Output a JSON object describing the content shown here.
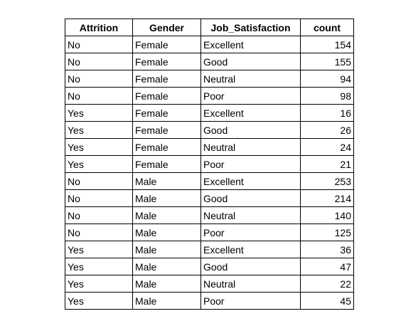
{
  "table": {
    "columns": [
      "Attrition",
      "Gender",
      "Job_Satisfaction",
      "count"
    ],
    "rows": [
      [
        "No",
        "Female",
        "Excellent",
        154
      ],
      [
        "No",
        "Female",
        "Good",
        155
      ],
      [
        "No",
        "Female",
        "Neutral",
        94
      ],
      [
        "No",
        "Female",
        "Poor",
        98
      ],
      [
        "Yes",
        "Female",
        "Excellent",
        16
      ],
      [
        "Yes",
        "Female",
        "Good",
        26
      ],
      [
        "Yes",
        "Female",
        "Neutral",
        24
      ],
      [
        "Yes",
        "Female",
        "Poor",
        21
      ],
      [
        "No",
        "Male",
        "Excellent",
        253
      ],
      [
        "No",
        "Male",
        "Good",
        214
      ],
      [
        "No",
        "Male",
        "Neutral",
        140
      ],
      [
        "No",
        "Male",
        "Poor",
        125
      ],
      [
        "Yes",
        "Male",
        "Excellent",
        36
      ],
      [
        "Yes",
        "Male",
        "Good",
        47
      ],
      [
        "Yes",
        "Male",
        "Neutral",
        22
      ],
      [
        "Yes",
        "Male",
        "Poor",
        45
      ]
    ]
  }
}
